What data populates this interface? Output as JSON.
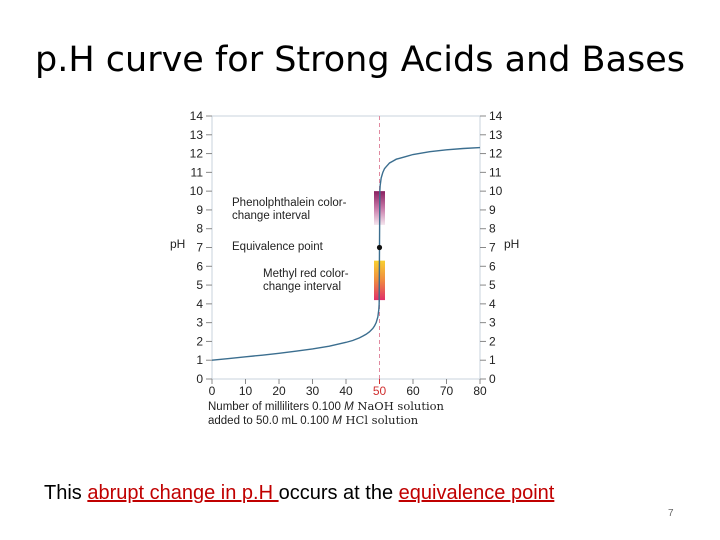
{
  "slide": {
    "title": "p.H curve for Strong Acids and Bases",
    "caption": {
      "part1": "This ",
      "part2": "abrupt change in p.H ",
      "part3": "occurs at the ",
      "part4": "equivalence point"
    },
    "page_number": "7"
  },
  "colors": {
    "curve": "#3b6e8f",
    "equivalence_line": "#e08aa0",
    "grid": "#c9d3dc",
    "highlight_tick": "#d03030"
  },
  "chart_data": {
    "type": "line",
    "x_ticks": [
      "0",
      "10",
      "20",
      "30",
      "40",
      "50",
      "60",
      "70",
      "80"
    ],
    "y_ticks": [
      "0",
      "1",
      "2",
      "3",
      "4",
      "5",
      "6",
      "7",
      "8",
      "9",
      "10",
      "11",
      "12",
      "13",
      "14"
    ],
    "xlim": [
      0,
      80
    ],
    "ylim": [
      0,
      14
    ],
    "ylabel_left": "pH",
    "ylabel_right": "pH",
    "xlabel_line1": {
      "a": "Number of milliliters 0.100 ",
      "m": "M",
      "b": " NaOH solution"
    },
    "xlabel_line2": {
      "a": "added to 50.0 mL 0.100 ",
      "m": "M",
      "b": " HCl solution"
    },
    "highlighted_x_tick": "50",
    "equivalence_point": {
      "x": 50,
      "y": 7,
      "label": "Equivalence point"
    },
    "intervals": [
      {
        "label_line1": "Phenolphthalein color-",
        "label_line2": "change interval",
        "ph_low": 8.2,
        "ph_high": 10.0
      },
      {
        "label_line1": "Methyl red color-",
        "label_line2": "change interval",
        "ph_low": 4.2,
        "ph_high": 6.3
      }
    ],
    "series": [
      {
        "x": [
          0,
          5,
          10,
          15,
          20,
          25,
          30,
          35,
          40,
          42,
          44,
          45,
          46,
          47,
          48,
          48.5,
          49,
          49.5,
          49.8,
          49.9,
          50,
          50.1,
          50.2,
          50.5,
          51,
          51.5,
          52,
          53,
          54,
          55,
          56,
          58,
          60,
          65,
          70,
          75,
          80
        ],
        "y": [
          1.0,
          1.09,
          1.18,
          1.27,
          1.37,
          1.48,
          1.6,
          1.75,
          1.95,
          2.05,
          2.19,
          2.28,
          2.38,
          2.51,
          2.69,
          2.82,
          3.0,
          3.3,
          3.7,
          4.0,
          7.0,
          10.0,
          10.3,
          10.7,
          11.0,
          11.2,
          11.3,
          11.5,
          11.6,
          11.7,
          11.75,
          11.85,
          11.95,
          12.1,
          12.2,
          12.27,
          12.32
        ]
      }
    ]
  }
}
